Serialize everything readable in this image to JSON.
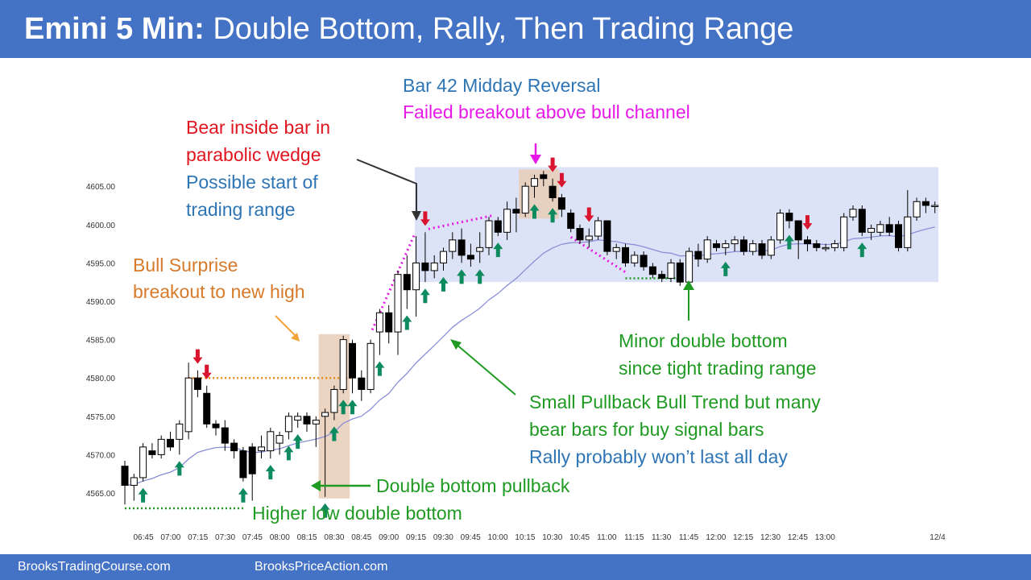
{
  "title": {
    "bold": "Emini 5 Min:",
    "rest": "Double Bottom, Rally, Then Trading Range"
  },
  "footer": {
    "left": "BrooksTradingCourse.com",
    "right": "BrooksPriceAction.com"
  },
  "colors": {
    "header": "#4472c4",
    "red_text": "#e0151f",
    "blue_text": "#2e75b6",
    "magenta_text": "#e619e6",
    "orange_text": "#d77a2a",
    "green_text": "#1f9a22",
    "ema": "#8b8fd8",
    "trading_range_box": "#dde3f6",
    "highlight_box": "#e7cdb6",
    "bull_arrow": "#0e8a5f",
    "bear_arrow": "#d8142e"
  },
  "annotations": {
    "bear_inside": {
      "l1": "Bear inside bar in",
      "l2": "parabolic wedge",
      "l3": "Possible start of",
      "l4": "trading range"
    },
    "bar42": {
      "l1": "Bar 42 Midday Reversal",
      "l2": "Failed breakout above bull channel"
    },
    "bull_surprise": {
      "l1": "Bull Surprise",
      "l2": "breakout to new high"
    },
    "minor_db": {
      "l1": "Minor double bottom",
      "l2": "since tight trading range"
    },
    "small_pb": {
      "l1": "Small Pullback Bull Trend but many",
      "l2": "bear bars for buy signal bars",
      "l3": "Rally probably won’t last all day"
    },
    "double_bottom_pb": "Double bottom pullback",
    "higher_low_db": "Higher low double bottom"
  },
  "chart_data": {
    "type": "candlestick",
    "title": "",
    "xlabel": "",
    "ylabel": "",
    "ylim": [
      4562,
      4609
    ],
    "y_ticks": [
      "4565.00",
      "4570.00",
      "4575.00",
      "4580.00",
      "4585.00",
      "4590.00",
      "4595.00",
      "4600.00",
      "4605.00"
    ],
    "x_ticks": [
      "06:45",
      "07:00",
      "07:15",
      "07:30",
      "07:45",
      "08:00",
      "08:15",
      "08:30",
      "08:45",
      "09:00",
      "09:15",
      "09:30",
      "09:45",
      "10:00",
      "10:15",
      "10:30",
      "10:45",
      "11:00",
      "11:15",
      "11:30",
      "11:45",
      "12:00",
      "12:15",
      "12:30",
      "12:45",
      "13:00",
      "12/4"
    ],
    "bars": [
      {
        "o": 4568.5,
        "h": 4569.2,
        "l": 4563.5,
        "c": 4566.0
      },
      {
        "o": 4566.0,
        "h": 4567.5,
        "l": 4564.0,
        "c": 4567.0
      },
      {
        "o": 4567.0,
        "h": 4571.5,
        "l": 4566.5,
        "c": 4571.0
      },
      {
        "o": 4570.5,
        "h": 4571.5,
        "l": 4569.5,
        "c": 4570.0
      },
      {
        "o": 4570.0,
        "h": 4572.5,
        "l": 4569.5,
        "c": 4572.0
      },
      {
        "o": 4572.0,
        "h": 4573.0,
        "l": 4570.5,
        "c": 4571.0
      },
      {
        "o": 4572.0,
        "h": 4574.5,
        "l": 4570.0,
        "c": 4574.0
      },
      {
        "o": 4573.0,
        "h": 4582.0,
        "l": 4572.0,
        "c": 4580.0
      },
      {
        "o": 4580.0,
        "h": 4581.0,
        "l": 4577.5,
        "c": 4578.5
      },
      {
        "o": 4578.0,
        "h": 4579.0,
        "l": 4573.5,
        "c": 4574.0
      },
      {
        "o": 4574.0,
        "h": 4574.5,
        "l": 4572.5,
        "c": 4573.5
      },
      {
        "o": 4573.5,
        "h": 4574.5,
        "l": 4570.5,
        "c": 4571.5
      },
      {
        "o": 4571.5,
        "h": 4572.0,
        "l": 4569.5,
        "c": 4570.5
      },
      {
        "o": 4570.5,
        "h": 4571.0,
        "l": 4566.5,
        "c": 4567.0
      },
      {
        "o": 4571.0,
        "h": 4571.5,
        "l": 4564.0,
        "c": 4567.5
      },
      {
        "o": 4570.5,
        "h": 4572.5,
        "l": 4569.5,
        "c": 4571.0
      },
      {
        "o": 4570.5,
        "h": 4573.5,
        "l": 4569.5,
        "c": 4573.0
      },
      {
        "o": 4571.5,
        "h": 4573.0,
        "l": 4570.0,
        "c": 4572.5
      },
      {
        "o": 4573.0,
        "h": 4575.5,
        "l": 4572.0,
        "c": 4575.0
      },
      {
        "o": 4574.5,
        "h": 4575.5,
        "l": 4573.5,
        "c": 4575.0
      },
      {
        "o": 4575.0,
        "h": 4575.5,
        "l": 4573.0,
        "c": 4574.0
      },
      {
        "o": 4574.0,
        "h": 4575.0,
        "l": 4571.0,
        "c": 4574.5
      },
      {
        "o": 4575.0,
        "h": 4576.0,
        "l": 4564.5,
        "c": 4575.5
      },
      {
        "o": 4575.5,
        "h": 4579.0,
        "l": 4574.5,
        "c": 4578.5
      },
      {
        "o": 4578.5,
        "h": 4585.5,
        "l": 4578.0,
        "c": 4585.0
      },
      {
        "o": 4584.5,
        "h": 4585.0,
        "l": 4578.0,
        "c": 4580.0
      },
      {
        "o": 4580.0,
        "h": 4581.0,
        "l": 4577.0,
        "c": 4578.5
      },
      {
        "o": 4578.5,
        "h": 4585.0,
        "l": 4578.0,
        "c": 4584.5
      },
      {
        "o": 4586.0,
        "h": 4589.0,
        "l": 4583.0,
        "c": 4588.5
      },
      {
        "o": 4588.5,
        "h": 4589.5,
        "l": 4584.5,
        "c": 4586.0
      },
      {
        "o": 4586.0,
        "h": 4594.0,
        "l": 4583.0,
        "c": 4593.5
      },
      {
        "o": 4593.5,
        "h": 4596.0,
        "l": 4589.0,
        "c": 4591.5
      },
      {
        "o": 4591.5,
        "h": 4598.5,
        "l": 4588.0,
        "c": 4595.0
      },
      {
        "o": 4595.0,
        "h": 4599.0,
        "l": 4592.5,
        "c": 4594.0
      },
      {
        "o": 4594.0,
        "h": 4596.0,
        "l": 4593.0,
        "c": 4595.0
      },
      {
        "o": 4595.0,
        "h": 4597.0,
        "l": 4594.0,
        "c": 4596.5
      },
      {
        "o": 4596.5,
        "h": 4599.0,
        "l": 4595.5,
        "c": 4598.0
      },
      {
        "o": 4598.0,
        "h": 4599.5,
        "l": 4595.0,
        "c": 4596.0
      },
      {
        "o": 4596.0,
        "h": 4597.5,
        "l": 4594.5,
        "c": 4595.5
      },
      {
        "o": 4596.5,
        "h": 4599.0,
        "l": 4595.0,
        "c": 4597.0
      },
      {
        "o": 4597.0,
        "h": 4601.0,
        "l": 4596.0,
        "c": 4600.5
      },
      {
        "o": 4600.5,
        "h": 4601.0,
        "l": 4598.5,
        "c": 4599.0
      },
      {
        "o": 4599.0,
        "h": 4603.0,
        "l": 4598.0,
        "c": 4602.0
      },
      {
        "o": 4602.0,
        "h": 4603.5,
        "l": 4599.0,
        "c": 4601.5
      },
      {
        "o": 4601.5,
        "h": 4605.5,
        "l": 4601.0,
        "c": 4605.0
      },
      {
        "o": 4605.0,
        "h": 4606.5,
        "l": 4603.5,
        "c": 4606.0
      },
      {
        "o": 4606.5,
        "h": 4607.0,
        "l": 4605.0,
        "c": 4606.0
      },
      {
        "o": 4605.0,
        "h": 4606.0,
        "l": 4603.0,
        "c": 4603.5
      },
      {
        "o": 4603.5,
        "h": 4604.0,
        "l": 4601.0,
        "c": 4602.0
      },
      {
        "o": 4601.5,
        "h": 4602.0,
        "l": 4599.0,
        "c": 4599.5
      },
      {
        "o": 4599.5,
        "h": 4600.0,
        "l": 4597.5,
        "c": 4598.0
      },
      {
        "o": 4598.0,
        "h": 4599.5,
        "l": 4597.0,
        "c": 4598.5
      },
      {
        "o": 4598.5,
        "h": 4601.0,
        "l": 4598.0,
        "c": 4600.5
      },
      {
        "o": 4600.5,
        "h": 4600.5,
        "l": 4596.0,
        "c": 4596.5
      },
      {
        "o": 4596.5,
        "h": 4597.5,
        "l": 4595.5,
        "c": 4597.0
      },
      {
        "o": 4597.0,
        "h": 4597.5,
        "l": 4594.5,
        "c": 4595.0
      },
      {
        "o": 4595.0,
        "h": 4596.5,
        "l": 4594.5,
        "c": 4596.0
      },
      {
        "o": 4596.0,
        "h": 4596.5,
        "l": 4594.0,
        "c": 4594.5
      },
      {
        "o": 4594.5,
        "h": 4595.0,
        "l": 4593.0,
        "c": 4593.5
      },
      {
        "o": 4593.5,
        "h": 4594.0,
        "l": 4592.5,
        "c": 4593.0
      },
      {
        "o": 4593.0,
        "h": 4595.5,
        "l": 4592.5,
        "c": 4595.0
      },
      {
        "o": 4595.0,
        "h": 4595.5,
        "l": 4592.0,
        "c": 4592.5
      },
      {
        "o": 4592.5,
        "h": 4597.0,
        "l": 4592.0,
        "c": 4596.5
      },
      {
        "o": 4596.5,
        "h": 4597.5,
        "l": 4594.5,
        "c": 4595.5
      },
      {
        "o": 4595.5,
        "h": 4598.5,
        "l": 4595.0,
        "c": 4598.0
      },
      {
        "o": 4597.5,
        "h": 4598.0,
        "l": 4596.5,
        "c": 4597.0
      },
      {
        "o": 4597.0,
        "h": 4598.0,
        "l": 4596.0,
        "c": 4597.5
      },
      {
        "o": 4597.5,
        "h": 4598.5,
        "l": 4596.5,
        "c": 4598.0
      },
      {
        "o": 4598.0,
        "h": 4598.5,
        "l": 4596.0,
        "c": 4596.5
      },
      {
        "o": 4596.5,
        "h": 4598.0,
        "l": 4596.0,
        "c": 4597.5
      },
      {
        "o": 4597.5,
        "h": 4598.0,
        "l": 4595.5,
        "c": 4596.0
      },
      {
        "o": 4596.0,
        "h": 4598.5,
        "l": 4595.5,
        "c": 4598.0
      },
      {
        "o": 4598.0,
        "h": 4602.0,
        "l": 4597.5,
        "c": 4601.5
      },
      {
        "o": 4601.5,
        "h": 4602.0,
        "l": 4599.5,
        "c": 4600.5
      },
      {
        "o": 4600.5,
        "h": 4600.5,
        "l": 4595.5,
        "c": 4598.0
      },
      {
        "o": 4598.0,
        "h": 4598.5,
        "l": 4596.5,
        "c": 4597.5
      },
      {
        "o": 4597.5,
        "h": 4598.0,
        "l": 4596.5,
        "c": 4597.0
      },
      {
        "o": 4597.0,
        "h": 4597.5,
        "l": 4596.5,
        "c": 4597.0
      },
      {
        "o": 4597.0,
        "h": 4598.0,
        "l": 4596.5,
        "c": 4597.5
      },
      {
        "o": 4597.0,
        "h": 4601.5,
        "l": 4596.5,
        "c": 4601.0
      },
      {
        "o": 4601.0,
        "h": 4602.5,
        "l": 4600.5,
        "c": 4602.0
      },
      {
        "o": 4602.0,
        "h": 4602.5,
        "l": 4598.5,
        "c": 4599.0
      },
      {
        "o": 4599.0,
        "h": 4600.0,
        "l": 4598.0,
        "c": 4599.5
      },
      {
        "o": 4599.0,
        "h": 4600.5,
        "l": 4598.5,
        "c": 4600.0
      },
      {
        "o": 4600.0,
        "h": 4601.0,
        "l": 4598.5,
        "c": 4599.0
      },
      {
        "o": 4600.0,
        "h": 4600.5,
        "l": 4596.5,
        "c": 4597.0
      },
      {
        "o": 4597.0,
        "h": 4604.5,
        "l": 4596.5,
        "c": 4601.0
      },
      {
        "o": 4601.0,
        "h": 4603.5,
        "l": 4600.5,
        "c": 4603.0
      },
      {
        "o": 4603.0,
        "h": 4603.5,
        "l": 4601.5,
        "c": 4602.5
      },
      {
        "o": 4602.5,
        "h": 4603.0,
        "l": 4601.5,
        "c": 4602.5
      }
    ],
    "ema_start": 4566.0,
    "ema_end": 4600.0,
    "trading_range_y": [
      4592.5,
      4607.5
    ],
    "highlight_zones": [
      {
        "from_bar": 22,
        "to_bar": 24
      },
      {
        "from_bar": 44,
        "to_bar": 47
      }
    ],
    "bull_signal_bars": [
      2,
      6,
      13,
      16,
      18,
      19,
      22,
      23,
      24,
      25,
      28,
      31,
      33,
      35,
      37,
      39,
      41,
      45,
      47,
      66,
      73,
      81
    ],
    "bear_signal_bars": [
      8,
      9,
      33,
      47,
      48,
      51,
      75
    ],
    "reference_lines": [
      4580,
      4563,
      4593
    ]
  }
}
